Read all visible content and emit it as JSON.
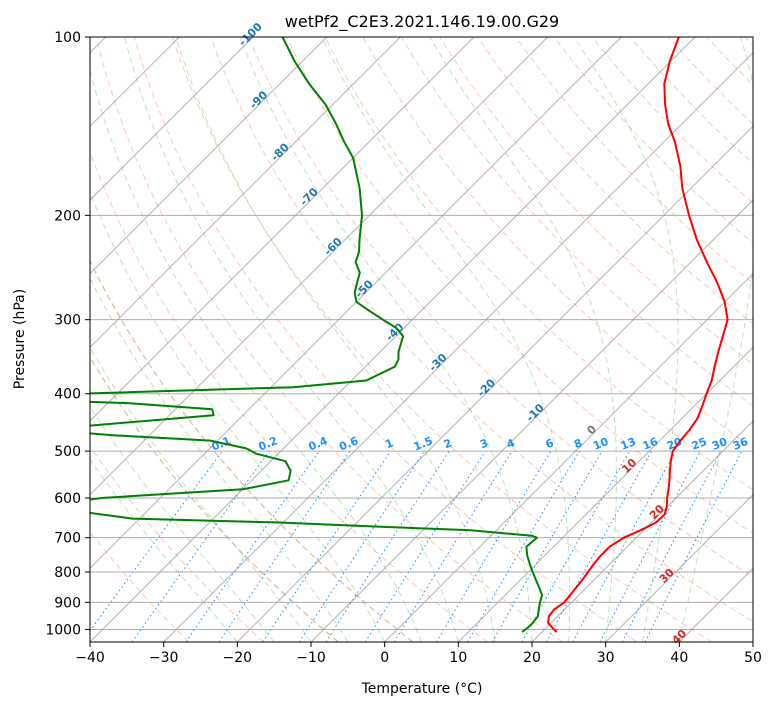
{
  "chart_data": {
    "type": "line",
    "chart_kind": "skew-T log-P sounding",
    "title": "wetPf2_C2E3.2021.146.19.00.G29",
    "xlabel": "Temperature (°C)",
    "ylabel": "Pressure (hPa)",
    "xlim": [
      -40,
      50
    ],
    "ylim": [
      1050,
      100
    ],
    "y_scale": "log",
    "grid": true,
    "x_ticks": [
      -40,
      -30,
      -20,
      -10,
      0,
      10,
      20,
      30,
      40,
      50
    ],
    "y_ticks": [
      100,
      200,
      300,
      400,
      500,
      600,
      700,
      800,
      900,
      1000
    ],
    "colors": {
      "temperature": "#ff0000",
      "dewpoint": "#008000",
      "isotherm": "#999999",
      "dry_adiabat": "#ff9a7a",
      "moist_adiabat": "#88cc88",
      "mixing_ratio": "#1e90ff",
      "isotherm_label": "#1f77b4",
      "zero_isotherm_label": "#777777",
      "warm_isotherm_label": "#d62728",
      "boundary_dry_adiabat": "#d2b48c"
    },
    "series": [
      {
        "role": "temperature",
        "pressure": [
          1010,
          990,
          975,
          950,
          925,
          900,
          875,
          850,
          825,
          800,
          775,
          750,
          725,
          700,
          680,
          660,
          640,
          620,
          600,
          580,
          560,
          540,
          520,
          500,
          480,
          460,
          440,
          420,
          400,
          380,
          360,
          340,
          320,
          300,
          280,
          260,
          240,
          220,
          200,
          180,
          165,
          150,
          140,
          130,
          120,
          110,
          100
        ],
        "values": [
          22.0,
          20.6,
          19.6,
          18.8,
          18.6,
          19.0,
          18.8,
          18.6,
          18.4,
          18.1,
          17.8,
          17.6,
          17.6,
          18.3,
          19.6,
          20.6,
          20.7,
          19.9,
          18.8,
          17.8,
          16.7,
          15.5,
          14.3,
          13.2,
          12.8,
          12.6,
          12.1,
          11.1,
          10.0,
          8.9,
          7.4,
          5.9,
          4.4,
          2.8,
          0.0,
          -3.6,
          -7.8,
          -12.2,
          -16.6,
          -21.2,
          -24.5,
          -28.6,
          -31.9,
          -34.9,
          -37.8,
          -40.1,
          -42.2
        ]
      },
      {
        "role": "dewpoint",
        "pressure": [
          1010,
          990,
          975,
          950,
          925,
          900,
          875,
          850,
          825,
          800,
          775,
          750,
          725,
          700,
          695,
          680,
          670,
          660,
          650,
          620,
          600,
          580,
          560,
          540,
          520,
          505,
          495,
          480,
          470,
          460,
          450,
          435,
          425,
          415,
          410,
          400,
          390,
          380,
          370,
          360,
          350,
          340,
          320,
          310,
          300,
          290,
          280,
          270,
          260,
          250,
          240,
          230,
          220,
          200,
          180,
          160,
          150,
          140,
          130,
          120,
          110,
          100
        ],
        "values": [
          17.3,
          17.5,
          17.5,
          17.3,
          16.5,
          15.7,
          15.0,
          13.6,
          12.1,
          10.6,
          9.1,
          7.6,
          6.3,
          6.5,
          5.6,
          -3.5,
          -17.5,
          -30.5,
          -51.0,
          -65.0,
          -58.0,
          -40.0,
          -35.0,
          -36.0,
          -38.0,
          -43.0,
          -45.0,
          -51.0,
          -65.0,
          -75.0,
          -67.0,
          -54.0,
          -55.0,
          -67.0,
          -80.0,
          -75.0,
          -47.0,
          -38.0,
          -37.0,
          -36.0,
          -36.5,
          -37.5,
          -39.0,
          -41.0,
          -44.0,
          -47.0,
          -50.0,
          -51.5,
          -52.5,
          -53.5,
          -55.5,
          -56.5,
          -58.0,
          -61.0,
          -65.0,
          -70.0,
          -73.5,
          -77.0,
          -81.0,
          -86.0,
          -91.0,
          -96.0
        ]
      }
    ],
    "isotherm_labels": [
      "-100",
      "-90",
      "-80",
      "-70",
      "-60",
      "-50",
      "-40",
      "-30",
      "-20",
      "-10",
      "0",
      "10",
      "20",
      "30",
      "40"
    ],
    "mixing_ratio_labels": [
      "0.1",
      "0.2",
      "0.4",
      "0.6",
      "1",
      "1.5",
      "2",
      "3",
      "4",
      "6",
      "8",
      "10",
      "13",
      "16",
      "20",
      "25",
      "30",
      "36"
    ]
  }
}
